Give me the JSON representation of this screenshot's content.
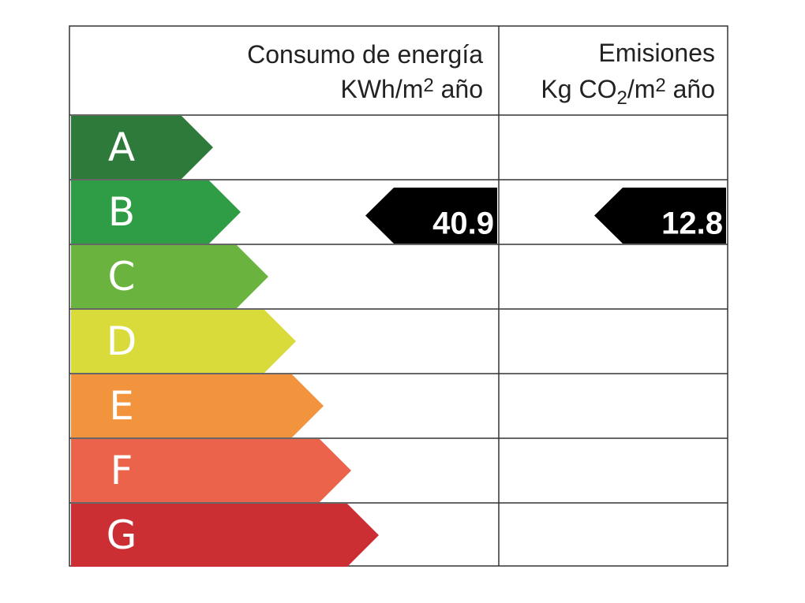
{
  "header": {
    "energy": {
      "title": "Consumo de energía",
      "unit": [
        "KWh/m",
        "2",
        " año"
      ]
    },
    "emissions": {
      "title": "Emisiones",
      "unit": [
        "Kg CO",
        "2",
        "/m",
        "2",
        " año"
      ]
    }
  },
  "classes": [
    {
      "letter": "A",
      "color": "#2e7a3b"
    },
    {
      "letter": "B",
      "color": "#2f9d46"
    },
    {
      "letter": "C",
      "color": "#69b33e"
    },
    {
      "letter": "D",
      "color": "#d8db3a"
    },
    {
      "letter": "E",
      "color": "#f2933e"
    },
    {
      "letter": "F",
      "color": "#ea634a"
    },
    {
      "letter": "G",
      "color": "#cb2f34"
    }
  ],
  "ratings": {
    "energy": {
      "class": "B",
      "value": 40.9
    },
    "emissions": {
      "class": "B",
      "value": 12.8
    }
  }
}
